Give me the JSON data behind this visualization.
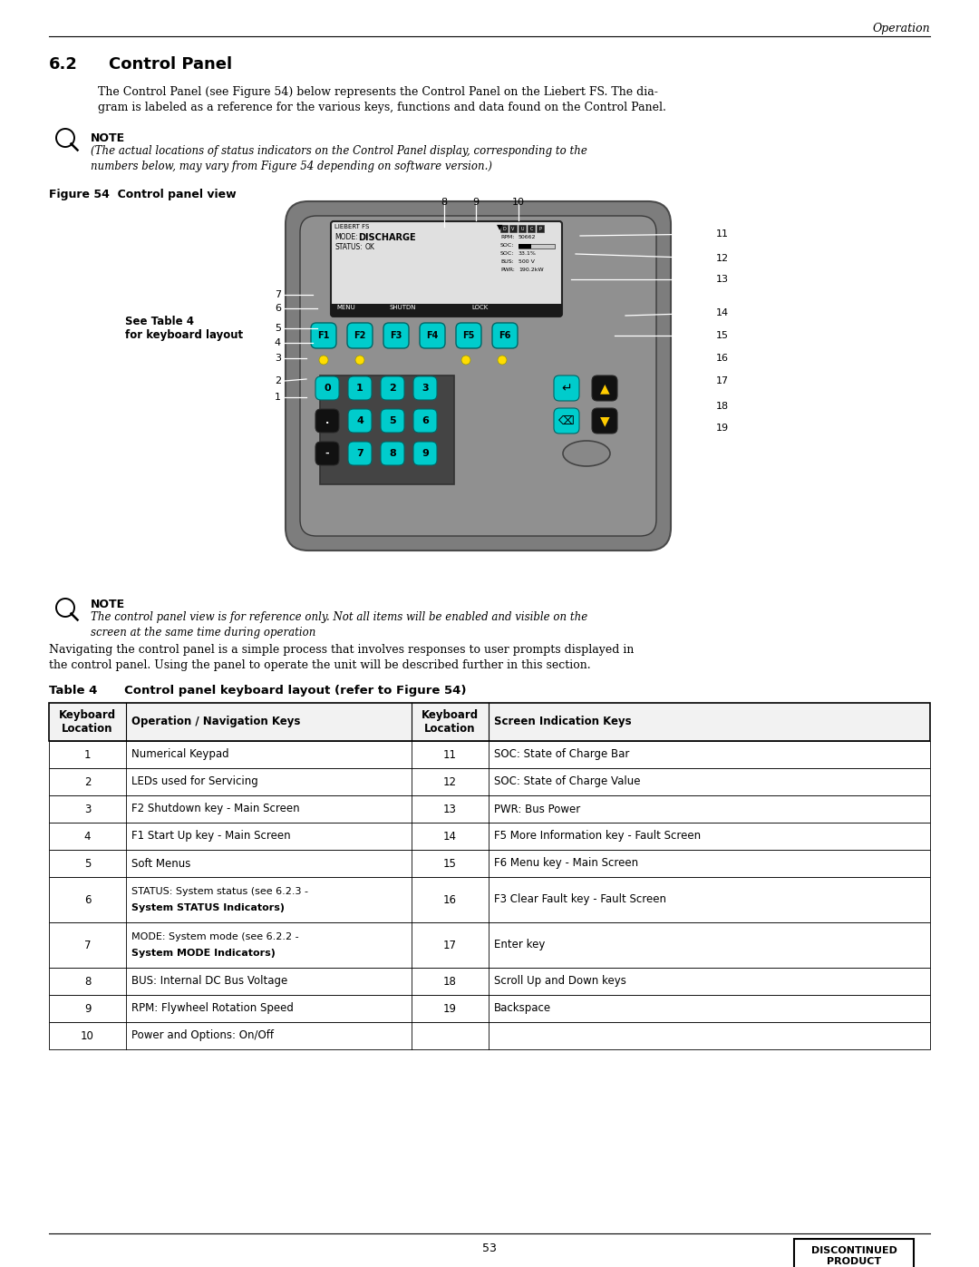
{
  "page_header": "Operation",
  "section_num": "6.2",
  "section_title": "Control Panel",
  "para1": "The Control Panel (see Figure 54) below represents the Control Panel on the Liebert FS. The dia-\ngram is labeled as a reference for the various keys, functions and data found on the Control Panel.",
  "note1_text": "(The actual locations of status indicators on the Control Panel display, corresponding to the\nnumbers below, may vary from Figure 54 depending on software version.)",
  "figure_label": "Figure 54  Control panel view",
  "left_label1": "See Table 4",
  "left_label2": "for keyboard layout",
  "note2_text": "The control panel view is for reference only. Not all items will be enabled and visible on the\nscreen at the same time during operation",
  "nav_text": "Navigating the control panel is a simple process that involves responses to user prompts displayed in\nthe control panel. Using the panel to operate the unit will be described further in this section.",
  "table_title": "Table 4",
  "table_subtitle": "     Control panel keyboard layout (refer to Figure 54)",
  "table_headers": [
    "Keyboard\nLocation",
    "Operation / Navigation Keys",
    "Keyboard\nLocation",
    "Screen Indication Keys"
  ],
  "table_rows": [
    [
      "1",
      "Numerical Keypad",
      "11",
      "SOC: State of Charge Bar"
    ],
    [
      "2",
      "LEDs used for Servicing",
      "12",
      "SOC: State of Charge Value"
    ],
    [
      "3",
      "F2 Shutdown key - Main Screen",
      "13",
      "PWR: Bus Power"
    ],
    [
      "4",
      "F1 Start Up key - Main Screen",
      "14",
      "F5 More Information key - Fault Screen"
    ],
    [
      "5",
      "Soft Menus",
      "15",
      "F6 Menu key - Main Screen"
    ],
    [
      "6",
      "STATUS: System status (see 6.2.3 -\nSystem STATUS Indicators)",
      "16",
      "F3 Clear Fault key - Fault Screen"
    ],
    [
      "7",
      "MODE: System mode (see 6.2.2 -\nSystem MODE Indicators)",
      "17",
      "Enter key"
    ],
    [
      "8",
      "BUS: Internal DC Bus Voltage",
      "18",
      "Scroll Up and Down keys"
    ],
    [
      "9",
      "RPM: Flywheel Rotation Speed",
      "19",
      "Backspace"
    ],
    [
      "10",
      "Power and Options: On/Off",
      "",
      ""
    ]
  ],
  "footer_page": "53",
  "key_cyan": "#00cccc",
  "key_dark": "#111111",
  "panel_gray": "#7d7d7d",
  "panel_dark": "#5a5a5a",
  "panel_mid": "#909090"
}
